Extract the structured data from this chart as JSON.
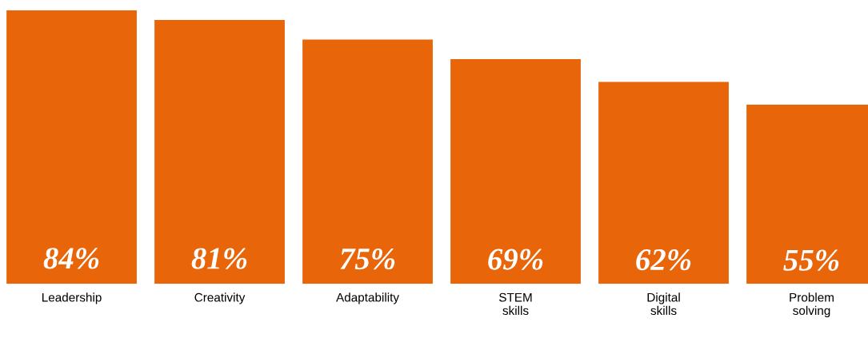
{
  "chart_data": {
    "type": "bar",
    "categories": [
      "Leadership",
      "Creativity",
      "Adaptability",
      "STEM\nskills",
      "Digital\nskills",
      "Problem\nsolving"
    ],
    "values": [
      84,
      81,
      75,
      69,
      62,
      55
    ],
    "color": "#e8650a",
    "value_labels": [
      "84%",
      "81%",
      "75%",
      "69%",
      "62%",
      "55%"
    ],
    "grid": false,
    "legend": false,
    "tick_labels": "x"
  }
}
